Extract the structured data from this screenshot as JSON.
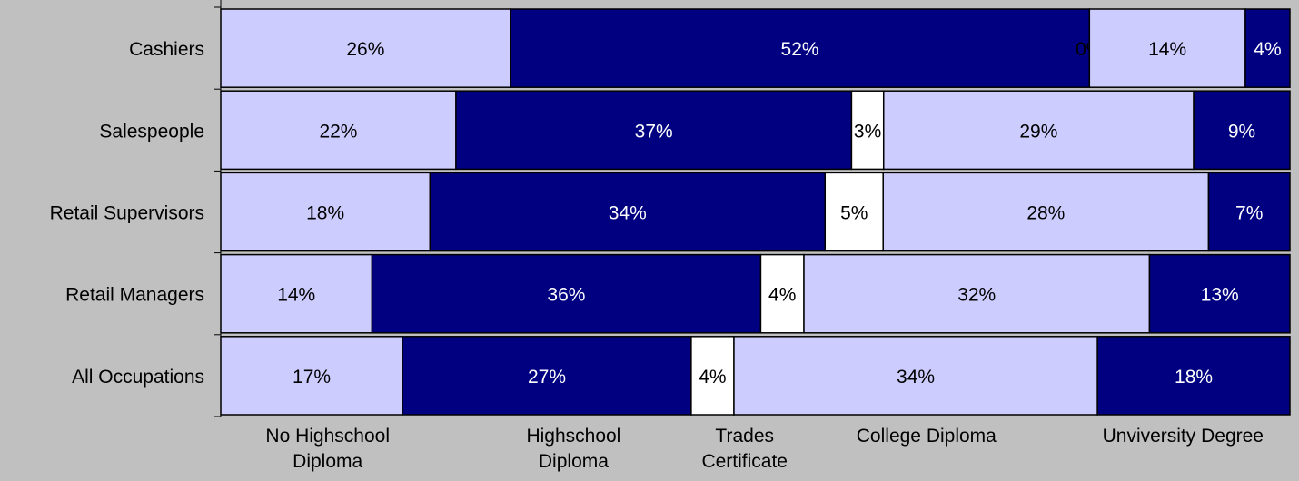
{
  "chart_data": {
    "type": "bar",
    "orientation": "horizontal",
    "stacked": true,
    "normalized_to": 100,
    "title": "",
    "categories": [
      "Cashiers",
      "Salespeople",
      "Retail Supervisors",
      "Retail Managers",
      "All Occupations"
    ],
    "series": [
      {
        "name": "No Highschool Diploma",
        "color": "#ccccff",
        "label_color": "#000000",
        "values": [
          26,
          22,
          18,
          14,
          17
        ]
      },
      {
        "name": "Highschool Diploma",
        "color": "#000080",
        "label_color": "#ffffff",
        "values": [
          52,
          37,
          34,
          36,
          27
        ]
      },
      {
        "name": "Trades Certificate",
        "color": "#ffffff",
        "label_color": "#000000",
        "values": [
          0,
          3,
          5,
          4,
          4
        ]
      },
      {
        "name": "College Diploma",
        "color": "#ccccff",
        "label_color": "#000000",
        "values": [
          14,
          29,
          28,
          32,
          34
        ]
      },
      {
        "name": "Unviversity Degree",
        "color": "#000080",
        "label_color": "#ffffff",
        "values": [
          4,
          9,
          7,
          13,
          18
        ]
      }
    ],
    "data_labels": [
      [
        "26%",
        "52%",
        "0%",
        "14%",
        "4%"
      ],
      [
        "22%",
        "37%",
        "3%",
        "29%",
        "9%"
      ],
      [
        "18%",
        "34%",
        "5%",
        "28%",
        "7%"
      ],
      [
        "14%",
        "36%",
        "4%",
        "32%",
        "13%"
      ],
      [
        "17%",
        "27%",
        "4%",
        "34%",
        "18%"
      ]
    ],
    "legend": {
      "placement": "bottom",
      "entries": [
        [
          "No Highschool",
          "Diploma"
        ],
        [
          "Highschool",
          "Diploma"
        ],
        [
          "Trades",
          "Certificate"
        ],
        [
          "College Diploma"
        ],
        [
          "Unviversity Degree"
        ]
      ]
    },
    "xlim": [
      0,
      100
    ],
    "grid": false,
    "background_color": "#c0c0c0"
  }
}
